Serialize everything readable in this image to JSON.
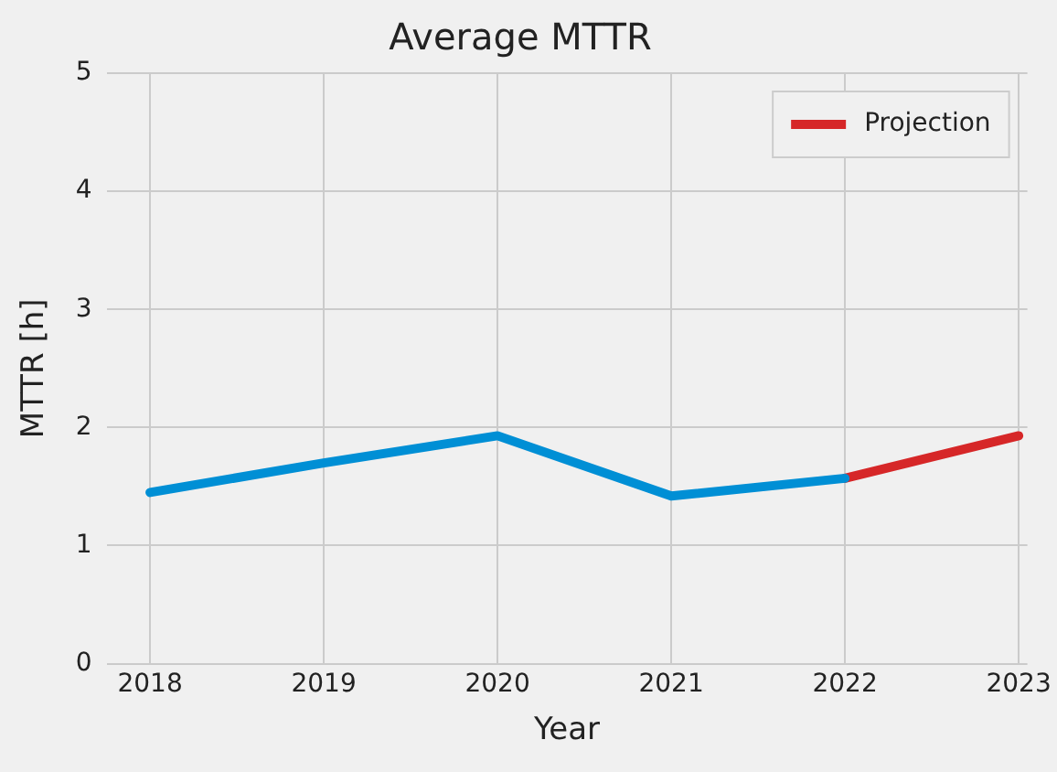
{
  "chart_data": {
    "type": "line",
    "title": "Average MTTR",
    "xlabel": "Year",
    "ylabel": "MTTR [h]",
    "xlim": [
      2017.75,
      2023.05
    ],
    "xticks": [
      2018,
      2019,
      2020,
      2021,
      2022,
      2023
    ],
    "ylim": [
      0,
      5
    ],
    "yticks": [
      0,
      1,
      2,
      3,
      4,
      5
    ],
    "series": [
      {
        "color": "#008fd5",
        "x": [
          2018,
          2019,
          2020,
          2021,
          2022
        ],
        "values": [
          1.45,
          1.7,
          1.93,
          1.42,
          1.57
        ]
      },
      {
        "name": "Projection",
        "color": "#d62728",
        "x": [
          2022,
          2023
        ],
        "values": [
          1.57,
          1.93
        ]
      }
    ],
    "grid": true,
    "legend": "top right",
    "marker": "none"
  }
}
